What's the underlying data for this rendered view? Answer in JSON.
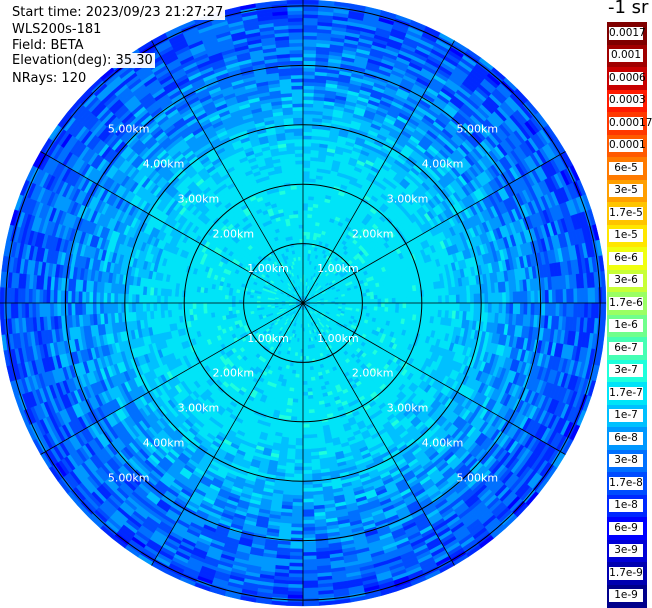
{
  "header": {
    "start_time": "Start time: 2023/09/23 21:27:27",
    "instrument": "WLS200s-181",
    "field": "Field: BETA",
    "elevation": "Elevation(deg): 35.30",
    "nrays": "NRays: 120"
  },
  "colorbar": {
    "units": "-1 sr",
    "labels": [
      "0.0017",
      "0.001",
      "0.0006",
      "0.0003",
      "0.00017",
      "0.0001",
      "6e-5",
      "3e-5",
      "1.7e-5",
      "1e-5",
      "6e-6",
      "3e-6",
      "1.7e-6",
      "1e-6",
      "6e-7",
      "3e-7",
      "1.7e-7",
      "1e-7",
      "6e-8",
      "3e-8",
      "1.7e-8",
      "1e-8",
      "6e-9",
      "3e-9",
      "1.7e-9",
      "1e-9"
    ],
    "colors": [
      "#7f0000",
      "#a00000",
      "#c80000",
      "#ff1a00",
      "#ff3800",
      "#ff5a00",
      "#ff7a00",
      "#ff9f00",
      "#ffc400",
      "#ffe600",
      "#f0ff10",
      "#c8ff37",
      "#9aff63",
      "#70ff8c",
      "#46ffb4",
      "#1effdc",
      "#00e4f8",
      "#00c0ff",
      "#0098ff",
      "#0070ff",
      "#004cff",
      "#0028ff",
      "#0000ff",
      "#0000d6",
      "#0000b0",
      "#00008b"
    ]
  },
  "chart_data": {
    "type": "ppi",
    "rings_km": [
      1,
      2,
      3,
      4,
      5
    ],
    "ring_labels": [
      "1.00km",
      "2.00km",
      "3.00km",
      "4.00km",
      "5.00km"
    ],
    "max_range_km": 5.1,
    "spoke_count": 12,
    "nrays": 120,
    "field": "BETA",
    "elevation_deg": 35.3,
    "intensity_profile": [
      {
        "range_km": 0.0,
        "class": "1.7e-7"
      },
      {
        "range_km": 1.0,
        "class": "1.7e-7"
      },
      {
        "range_km": 2.0,
        "class": "1.7e-7"
      },
      {
        "range_km": 3.0,
        "class": "1e-7"
      },
      {
        "range_km": 3.5,
        "class": "6e-8"
      },
      {
        "range_km": 4.2,
        "class": "3e-8"
      },
      {
        "range_km": 5.0,
        "class": "1.7e-8"
      }
    ]
  }
}
